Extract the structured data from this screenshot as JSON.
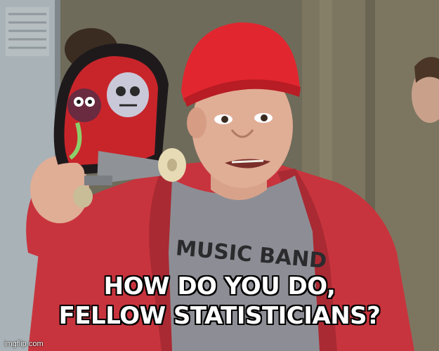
{
  "meme": {
    "caption_line1": "HOW DO YOU DO,",
    "caption_line2": "FELLOW STATISTICIANS?",
    "shirt_text": "MUSIC BAND",
    "watermark": "imgflip.com"
  },
  "colors": {
    "hat": "#e2262f",
    "hoodie": "#c8343d",
    "shirt": "#8d8e95",
    "locker": "#a9b2b7",
    "background": "#6e6b5a",
    "caption_text": "#ffffff",
    "caption_outline": "#000000"
  }
}
